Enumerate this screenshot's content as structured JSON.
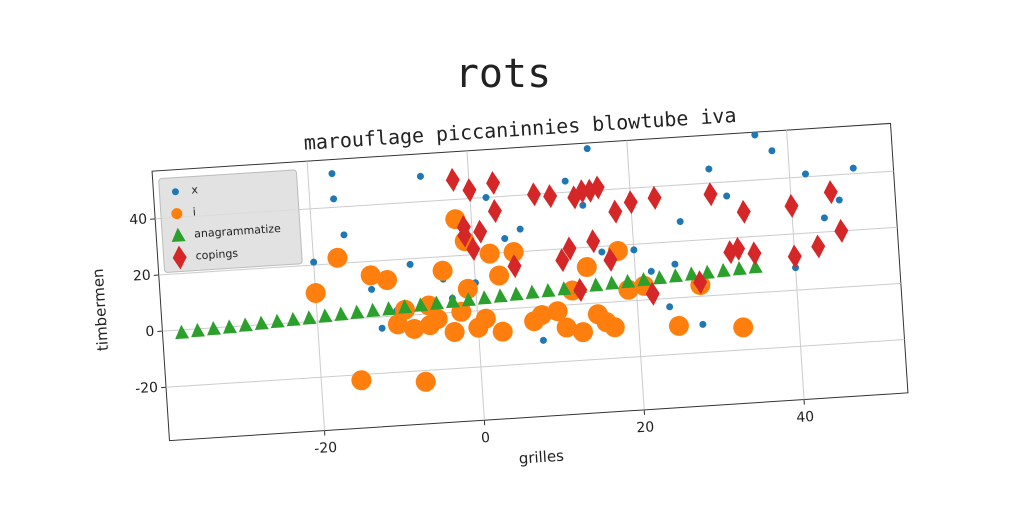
{
  "chart_data": {
    "type": "scatter",
    "title": "rots",
    "subtitle": "marouflage piccaninnies blowtube iva",
    "x_label": "grilles",
    "y_label": "timbermen",
    "xlim": [
      -39.4,
      53
    ],
    "ylim": [
      -39,
      57
    ],
    "xticks": [
      -20,
      0,
      20,
      40
    ],
    "yticks": [
      -20,
      0,
      20,
      40
    ],
    "grid": true,
    "legend": "upper left",
    "series": [
      {
        "name": "x",
        "color": "#1f77b4",
        "marker": "circle",
        "x": [
          -17,
          -17,
          -16,
          -20,
          -13,
          -10,
          -12,
          -8,
          -6,
          -4,
          -2,
          0,
          2,
          4,
          6,
          8,
          10,
          12,
          14,
          16,
          18,
          20,
          22,
          24,
          26,
          28,
          30,
          32,
          34,
          36,
          38,
          40,
          42,
          44,
          46,
          48,
          5,
          15,
          -3,
          25
        ],
        "y": [
          52,
          43,
          30,
          21,
          10,
          2,
          -4,
          18,
          49,
          12,
          31,
          10,
          40,
          25,
          28,
          -12,
          40,
          44,
          35,
          18,
          20,
          18,
          10,
          -3,
          27,
          -10,
          45,
          35,
          30,
          56,
          50,
          8,
          41,
          25,
          31,
          42,
          20,
          55,
          5,
          12
        ]
      },
      {
        "name": "i",
        "color": "#ff7f0e",
        "marker": "big-circle",
        "x": [
          -17,
          -13,
          -11,
          -10,
          -8,
          -6,
          -5,
          -3,
          -2,
          0,
          -1,
          2,
          3,
          -4,
          -6,
          1,
          -2,
          5,
          8,
          11,
          13,
          15,
          17,
          19,
          21,
          25,
          28,
          33,
          12,
          16,
          -15,
          -7,
          -20,
          -1,
          3,
          10,
          14,
          18,
          -9,
          7
        ],
        "y": [
          22,
          15,
          13,
          -3,
          -5,
          -4,
          -2,
          -7,
          0,
          -6,
          25,
          20,
          -8,
          15,
          3,
          -3,
          33,
          20,
          -3,
          -8,
          -10,
          -4,
          -9,
          4,
          5,
          -10,
          4,
          -12,
          5,
          -7,
          -22,
          -24,
          10,
          8,
          12,
          -2,
          13,
          18,
          2,
          -5
        ]
      },
      {
        "name": "anagrammatize",
        "color": "#2ca02c",
        "marker": "triangle",
        "x": [
          -37,
          -35,
          -33,
          -31,
          -29,
          -27,
          -25,
          -23,
          -21,
          -19,
          -17,
          -15,
          -13,
          -11,
          -9,
          -7,
          -5,
          -3,
          -1,
          1,
          3,
          5,
          7,
          9,
          11,
          13,
          15,
          17,
          19,
          21,
          23,
          25,
          27,
          29,
          31,
          33,
          35
        ],
        "y": [
          -1,
          -0.7,
          -0.4,
          -0.2,
          0.1,
          0.4,
          0.7,
          1.0,
          1.2,
          1.5,
          1.8,
          2.1,
          2.4,
          2.6,
          2.9,
          3.2,
          3.5,
          3.8,
          4.0,
          4.3,
          4.6,
          4.9,
          5.2,
          5.4,
          5.7,
          6.0,
          6.3,
          6.6,
          6.8,
          7.1,
          7.4,
          7.7,
          8.0,
          8.2,
          8.5,
          8.8,
          9.1
        ]
      },
      {
        "name": "copings",
        "color": "#d62728",
        "marker": "diamond",
        "x": [
          -2,
          0,
          3,
          -1,
          8,
          10,
          13,
          14,
          15,
          16,
          18,
          20,
          23,
          30,
          34,
          40,
          45,
          33,
          35,
          40,
          43,
          46,
          -1,
          1,
          3,
          11,
          13,
          17,
          22,
          28,
          32,
          12,
          15,
          0,
          5
        ],
        "y": [
          47,
          43,
          45,
          27,
          40,
          39,
          38,
          40,
          40,
          41,
          32,
          35,
          36,
          36,
          29,
          30,
          34,
          16,
          14,
          12,
          15,
          20,
          30,
          28,
          35,
          16,
          5,
          15,
          2,
          5,
          15,
          20,
          22,
          22,
          15
        ]
      }
    ]
  }
}
